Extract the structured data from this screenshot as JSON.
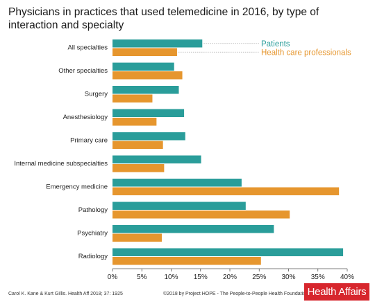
{
  "chart_data": {
    "type": "bar",
    "orientation": "horizontal",
    "title": "Physicians in practices that used telemedicine in 2016, by type of interaction and specialty",
    "categories": [
      "All specialties",
      "Other specialties",
      "Surgery",
      "Anesthesiology",
      "Primary care",
      "Internal medicine subspecialties",
      "Emergency medicine",
      "Pathology",
      "Psychiatry",
      "Radiology"
    ],
    "series": [
      {
        "name": "Patients",
        "color": "#2a9d9a",
        "values": [
          15.3,
          10.5,
          11.3,
          12.2,
          12.4,
          15.1,
          22.0,
          22.7,
          27.5,
          39.3
        ]
      },
      {
        "name": "Health care professionals",
        "color": "#e6962e",
        "values": [
          11.0,
          11.9,
          6.8,
          7.5,
          8.6,
          8.8,
          38.6,
          30.2,
          8.4,
          25.3
        ]
      }
    ],
    "x_ticks": [
      "0%",
      "5%",
      "10%",
      "15%",
      "20%",
      "25%",
      "30%",
      "35%",
      "40%"
    ],
    "xlim": [
      0,
      40
    ],
    "legend_placement": "top-right inline, next to first category",
    "grid": false
  },
  "footer": {
    "citation": "Carol K. Kane & Kurt Gillis. Health Aff 2018; 37: 1925",
    "copyright": "©2018 by Project HOPE - The People-to-People Health Foundation, Inc.",
    "logo_text": "Health Affairs"
  }
}
